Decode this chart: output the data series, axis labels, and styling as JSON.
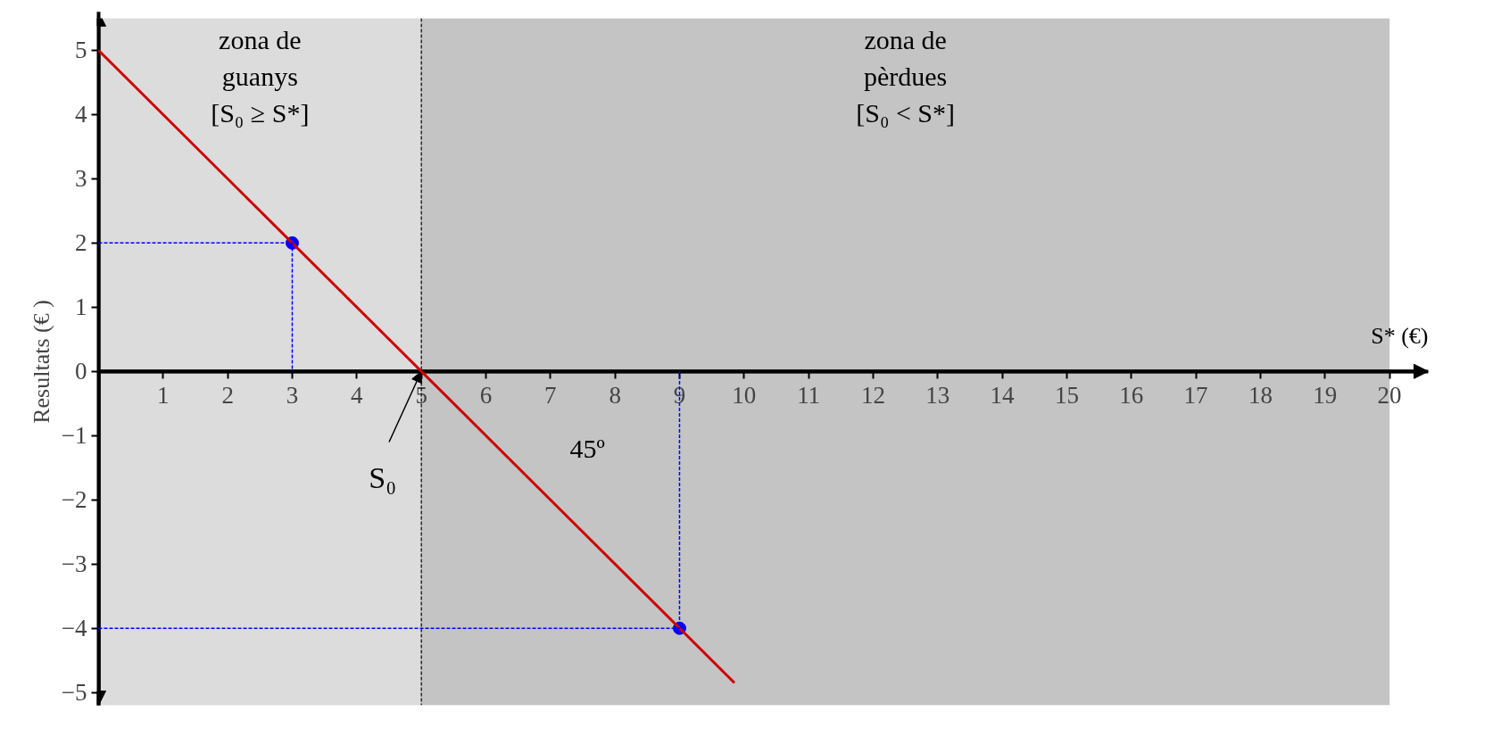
{
  "chart_data": {
    "type": "line",
    "xlabel": "S* (€)",
    "ylabel": "Resultats (€ )",
    "xlim": [
      0,
      20.6
    ],
    "ylim": [
      -5.2,
      5.5
    ],
    "xticks": [
      1,
      2,
      3,
      4,
      5,
      6,
      7,
      8,
      9,
      10,
      11,
      12,
      13,
      14,
      15,
      16,
      17,
      18,
      19,
      20
    ],
    "yticks": [
      {
        "value": -5,
        "label": "−5"
      },
      {
        "value": -4,
        "label": "−4"
      },
      {
        "value": -3,
        "label": "−3"
      },
      {
        "value": -2,
        "label": "−2"
      },
      {
        "value": -1,
        "label": "−1"
      },
      0,
      1,
      2,
      3,
      4,
      5
    ],
    "grid": false,
    "series": [
      {
        "color": "#cc0000",
        "x": [
          0,
          9.85
        ],
        "values": [
          5,
          -4.85
        ],
        "line_style": "solid"
      },
      {
        "color": "#0000ff",
        "x": [
          0,
          3,
          3
        ],
        "values": [
          2,
          2,
          0
        ],
        "line_style": "dashed"
      },
      {
        "color": "#0000ff",
        "x": [
          0,
          9,
          9
        ],
        "values": [
          -4,
          -4,
          0
        ],
        "line_style": "dashed"
      },
      {
        "type": "scatter",
        "color": "#0000ff",
        "x": [
          3,
          9
        ],
        "values": [
          2,
          -4
        ],
        "marker": "circle"
      }
    ],
    "bands": [
      {
        "axis": "x",
        "from": 0,
        "to": 5,
        "label": "zona de\nguanys\n[S₀ ≥ S*]",
        "color": "#dcdcdc"
      },
      {
        "axis": "x",
        "from": 5,
        "to": 20,
        "label": "zona de\npèrdues\n[S₀ < S*]",
        "color": "#c4c4c4"
      }
    ],
    "ref_lines": [
      {
        "axis": "x",
        "value": 5,
        "color": "#000000",
        "line_style": "dashed"
      }
    ],
    "annotations": [
      {
        "text": "S₀",
        "x": 5,
        "y": 0
      },
      "45º"
    ]
  }
}
